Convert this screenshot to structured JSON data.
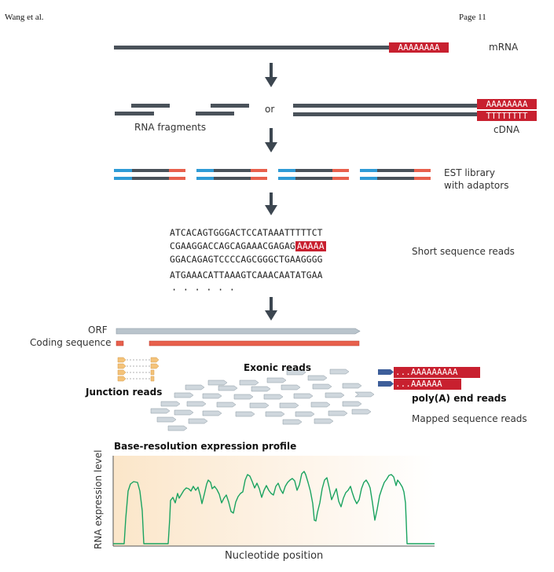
{
  "header": {
    "author": "Wang et al.",
    "page": "Page 11"
  },
  "labels": {
    "mrna": "mRNA",
    "or": "or",
    "rna_fragments": "RNA fragments",
    "cdna": "cDNA",
    "est_library_line1": "EST library",
    "est_library_line2": "with adaptors",
    "short_reads": "Short sequence reads",
    "orf": "ORF",
    "coding_sequence": "Coding sequence",
    "exonic_reads": "Exonic reads",
    "junction_reads": "Junction reads",
    "polya_end_reads": "poly(A) end reads",
    "mapped_reads": "Mapped sequence reads",
    "profile_title": "Base-resolution expression profile",
    "y_axis": "RNA expression level",
    "x_axis": "Nucleotide position"
  },
  "tails": {
    "mrna_tail": "AAAAAAAA",
    "cdna_top": "AAAAAAAA",
    "cdna_bottom": "TTTTTTTT",
    "polya_read1": "...AAAAAAAAA",
    "polya_read2": "...AAAAAA"
  },
  "sequences": {
    "line1": "ATCACAGTGGGACTCCATAAATTTTTCT",
    "line2_main": "CGAAGGACCAGCAGAAACGAGAG",
    "line2_tail": "AAAAA",
    "line3": "GGACAGAGTCCCCAGCGGGCTGAAGGGG",
    "line4": "ATGAAACATTAAAGTCAAACAATATGAA",
    "ellipsis": "· · · · · ·"
  },
  "colors": {
    "strand": "#4a525a",
    "poly_a_red": "#c8202f",
    "adaptor_blue": "#2e9bd6",
    "adaptor_red": "#e8604c",
    "orf_gray": "#b9c4cc",
    "coding_red": "#e8604c",
    "profile_green": "#1aa360",
    "junction_orange": "#f4c37a",
    "read_blue": "#3d5e9a"
  }
}
